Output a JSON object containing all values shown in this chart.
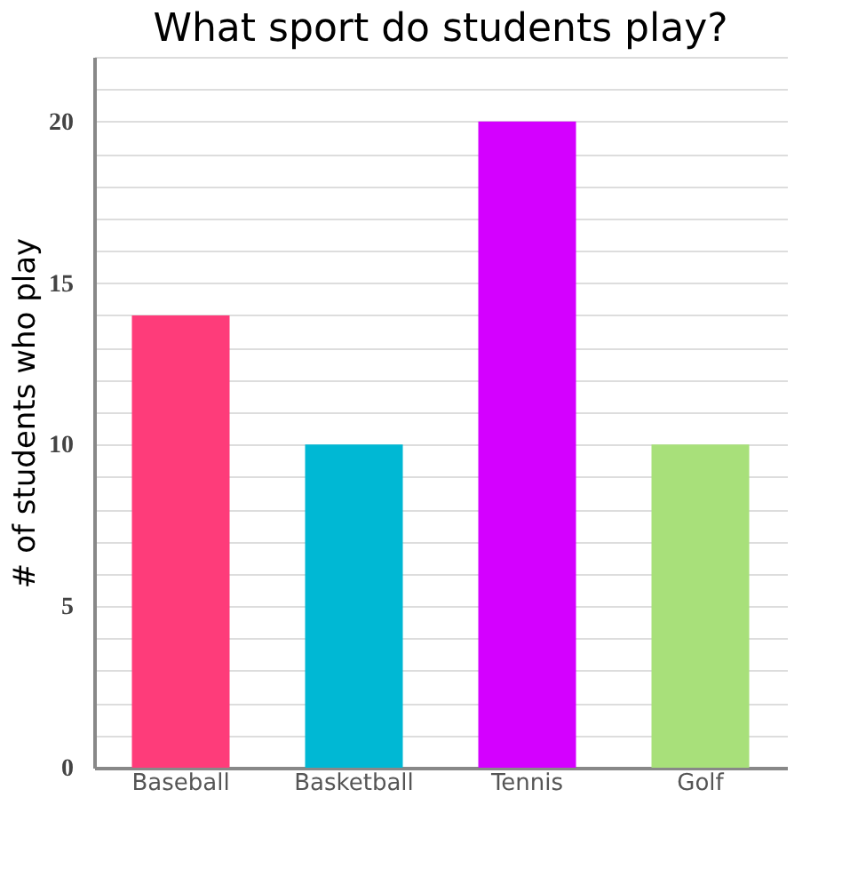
{
  "chart_data": {
    "type": "bar",
    "title": "What sport do students play?",
    "ylabel": "# of students who play",
    "categories": [
      "Baseball",
      "Basketball",
      "Tennis",
      "Golf"
    ],
    "values": [
      14,
      10,
      20,
      10
    ],
    "colors": [
      "#fe3c7a",
      "#00b8d4",
      "#d400ff",
      "#a8e07a"
    ],
    "ylim": [
      0,
      22
    ],
    "yticks": [
      0,
      {
        "value": 1,
        "label": null
      },
      {
        "value": 2,
        "label": null
      },
      {
        "value": 3,
        "label": null
      },
      {
        "value": 4,
        "label": null
      },
      5,
      {
        "value": 6,
        "label": null
      },
      {
        "value": 7,
        "label": null
      },
      {
        "value": 8,
        "label": null
      },
      {
        "value": 9,
        "label": null
      },
      10,
      {
        "value": 11,
        "label": null
      },
      {
        "value": 12,
        "label": null
      },
      {
        "value": 13,
        "label": null
      },
      {
        "value": 14,
        "label": null
      },
      15,
      {
        "value": 16,
        "label": null
      },
      {
        "value": 17,
        "label": null
      },
      {
        "value": 18,
        "label": null
      },
      {
        "value": 19,
        "label": null
      },
      20,
      {
        "value": 21,
        "label": null
      },
      {
        "value": 22,
        "label": null
      }
    ],
    "grid": "y"
  }
}
